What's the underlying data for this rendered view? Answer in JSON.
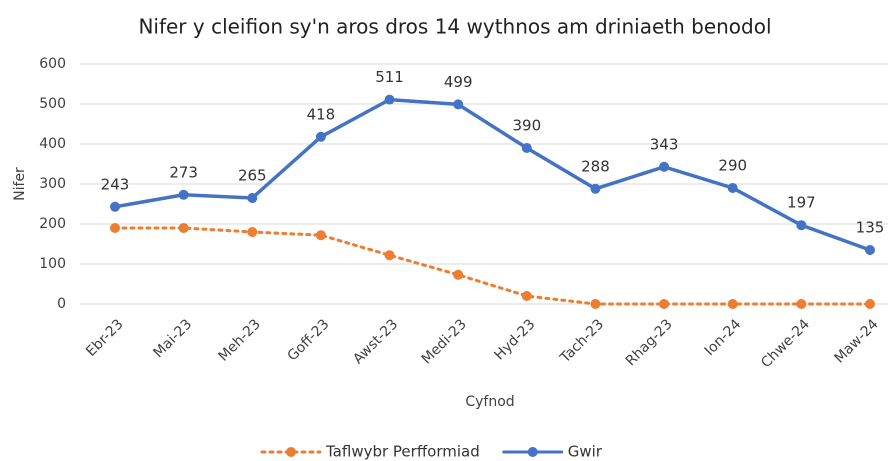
{
  "chart_data": {
    "type": "line",
    "title": "Nifer y cleifion sy'n aros dros 14 wythnos am driniaeth benodol",
    "x_label": "Cyfnod",
    "y_label": "Nifer",
    "categories": [
      "Ebr-23",
      "Mai-23",
      "Meh-23",
      "Goff-23",
      "Awst-23",
      "Medi-23",
      "Hyd-23",
      "Tach-23",
      "Rhag-23",
      "Ion-24",
      "Chwe-24",
      "Maw-24"
    ],
    "series": [
      {
        "name": "Taflwybr Perfformiad",
        "color": "#ed7d31",
        "linestyle": "dotted",
        "data_labels": false,
        "values": [
          190,
          190,
          180,
          172,
          122,
          73,
          20,
          0,
          0,
          0,
          0,
          0
        ]
      },
      {
        "name": "Gwir",
        "color": "#4472c4",
        "linestyle": "solid",
        "data_labels": true,
        "values": [
          243,
          273,
          265,
          418,
          511,
          499,
          390,
          288,
          343,
          290,
          197,
          135
        ]
      }
    ],
    "ylim": [
      0,
      600
    ],
    "yticks": [
      0,
      100,
      200,
      300,
      400,
      500,
      600
    ],
    "grid": true,
    "legend": "bottom"
  }
}
